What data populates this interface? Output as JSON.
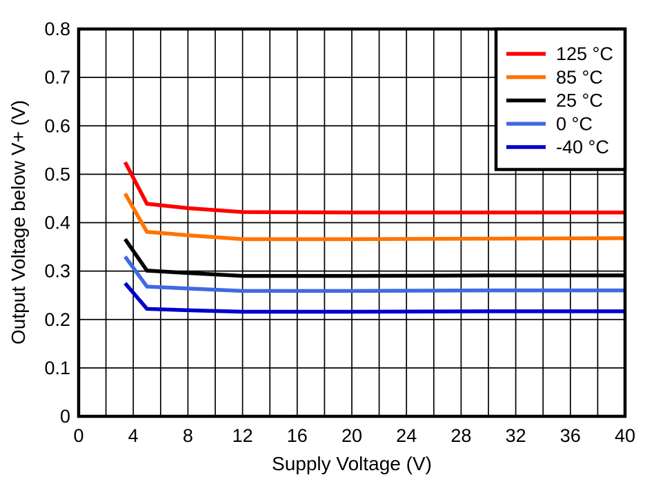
{
  "chart_data": {
    "type": "line",
    "title": "",
    "xlabel": "Supply Voltage (V)",
    "ylabel": "Output Voltage below V+ (V)",
    "xlim": [
      0,
      40
    ],
    "ylim": [
      0,
      0.8
    ],
    "grid": true,
    "legend_position": "top-right",
    "x_tick_values": [
      0,
      4,
      8,
      12,
      16,
      20,
      24,
      28,
      32,
      36,
      40
    ],
    "x_tick_labels": [
      "0",
      "4",
      "8",
      "12",
      "16",
      "20",
      "24",
      "28",
      "32",
      "36",
      "40"
    ],
    "x_grid_values": [
      2,
      4,
      6,
      8,
      10,
      12,
      14,
      16,
      18,
      20,
      22,
      24,
      26,
      28,
      30,
      32,
      34,
      36,
      38
    ],
    "y_tick_values": [
      0,
      0.1,
      0.2,
      0.3,
      0.4,
      0.5,
      0.6,
      0.7,
      0.8
    ],
    "y_tick_labels": [
      "0",
      "0.1",
      "0.2",
      "0.3",
      "0.4",
      "0.5",
      "0.6",
      "0.7",
      "0.8"
    ],
    "x": [
      3.4,
      5,
      8,
      12,
      20,
      30,
      40
    ],
    "series": [
      {
        "name": "125 °C",
        "color": "#FF0000",
        "values": [
          0.525,
          0.439,
          0.43,
          0.422,
          0.421,
          0.421,
          0.421
        ]
      },
      {
        "name": "85 °C",
        "color": "#FF7300",
        "values": [
          0.46,
          0.381,
          0.374,
          0.366,
          0.366,
          0.367,
          0.368
        ]
      },
      {
        "name": "25 °C",
        "color": "#000000",
        "values": [
          0.366,
          0.301,
          0.296,
          0.29,
          0.29,
          0.291,
          0.291
        ]
      },
      {
        "name": "0 °C",
        "color": "#4169E1",
        "values": [
          0.33,
          0.268,
          0.264,
          0.259,
          0.259,
          0.26,
          0.26
        ]
      },
      {
        "name": "-40 °C",
        "color": "#0000CD",
        "values": [
          0.275,
          0.222,
          0.219,
          0.216,
          0.216,
          0.217,
          0.217
        ]
      }
    ]
  },
  "styles": {
    "background_color": "#FFFFFF",
    "grid_color": "#000000",
    "axis_color": "#000000",
    "text_color": "#000000"
  }
}
